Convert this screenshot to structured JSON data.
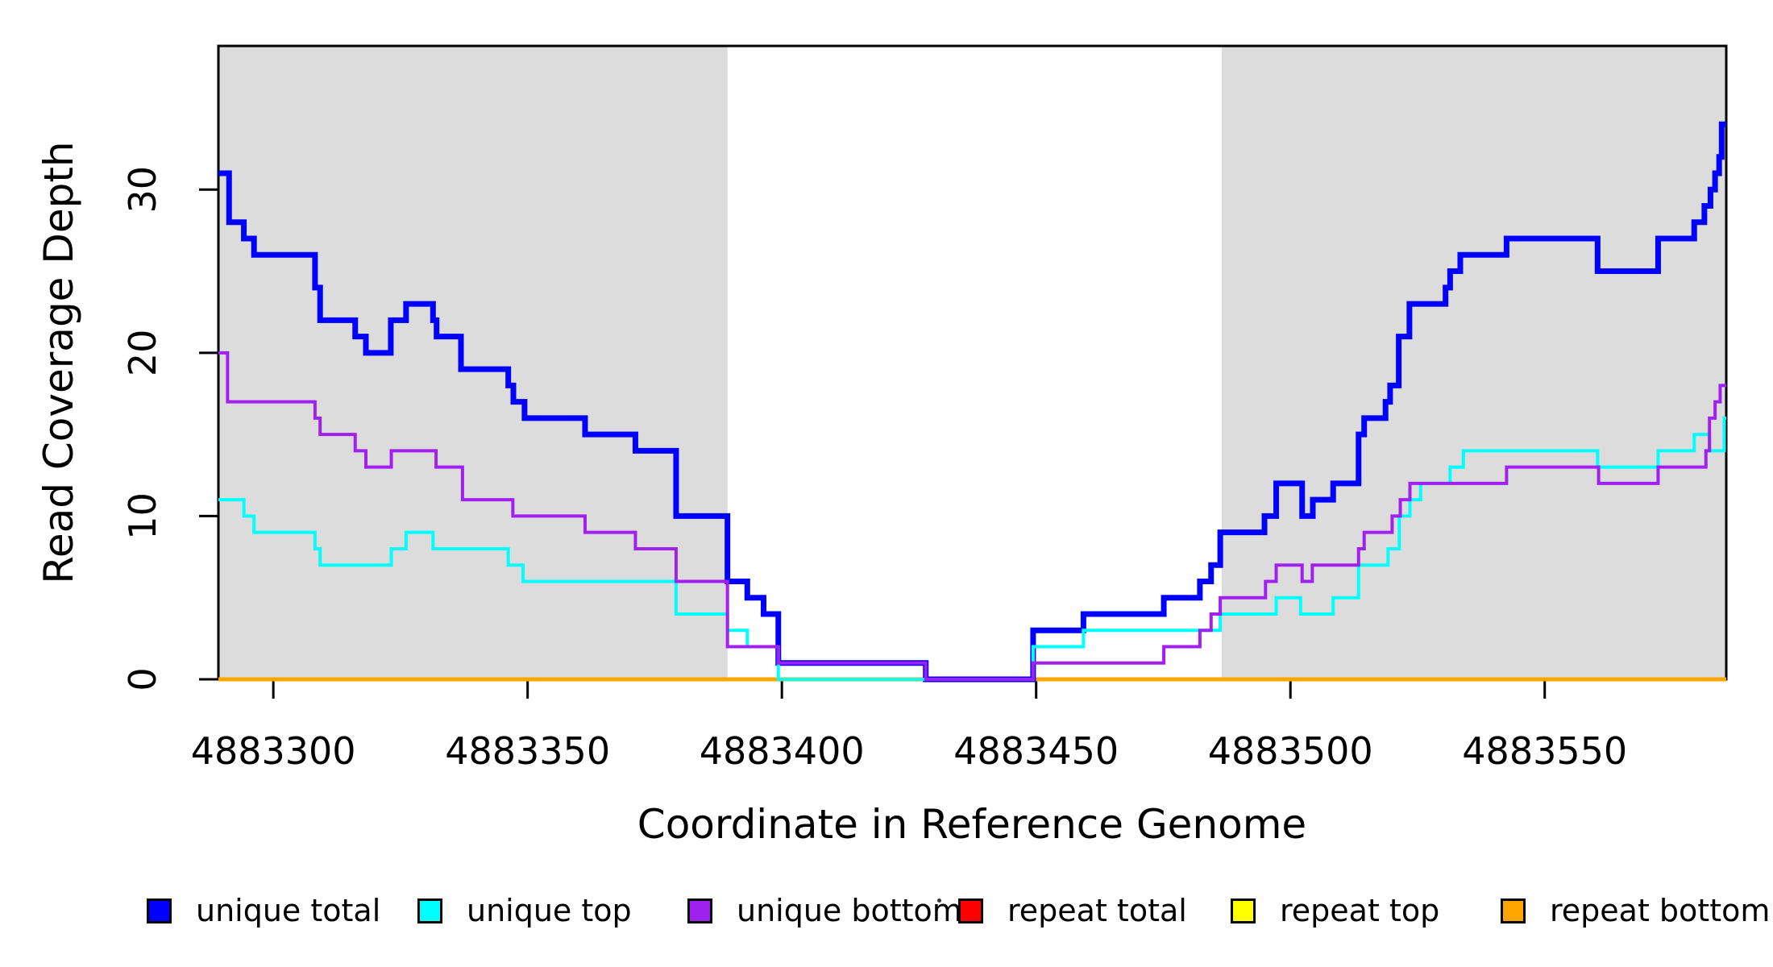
{
  "figure": {
    "xlabel": "Coordinate in Reference Genome",
    "ylabel": "Read Coverage Depth"
  },
  "chart_data": {
    "type": "line",
    "subtype": "step-coverage-plot",
    "title": "",
    "xlabel": "Coordinate in Reference Genome",
    "ylabel": "Read Coverage Depth",
    "xlim": [
      4883289.2,
      4883585.7
    ],
    "ylim": [
      0,
      38.8
    ],
    "x_ticks": [
      4883300,
      4883350,
      4883400,
      4883450,
      4883500,
      4883550
    ],
    "y_ticks": [
      0,
      10,
      20,
      30
    ],
    "grid": "off",
    "legend_position": "bottom",
    "background_color": "#ffffff",
    "shade_color": "#DCDCDC",
    "shaded_regions": [
      {
        "x0": 4883289.2,
        "x1": 4883389.3
      },
      {
        "x0": 4883486.5,
        "x1": 4883585.7
      }
    ],
    "series": [
      {
        "name": "unique total",
        "color": "#0000FF",
        "line_width": 7,
        "steps": [
          [
            4883289.2,
            31
          ],
          [
            4883291.3,
            28
          ],
          [
            4883294.2,
            27
          ],
          [
            4883296.2,
            26
          ],
          [
            4883308.2,
            24
          ],
          [
            4883309.2,
            22
          ],
          [
            4883316.1,
            21
          ],
          [
            4883318.2,
            20
          ],
          [
            4883323.1,
            22
          ],
          [
            4883326.1,
            23
          ],
          [
            4883331.4,
            22
          ],
          [
            4883332.1,
            21
          ],
          [
            4883336.9,
            19
          ],
          [
            4883346.2,
            18
          ],
          [
            4883347.2,
            17
          ],
          [
            4883349.4,
            16
          ],
          [
            4883361.3,
            15
          ],
          [
            4883371.2,
            14
          ],
          [
            4883379.2,
            10
          ],
          [
            4883389.3,
            6
          ],
          [
            4883393.2,
            5
          ],
          [
            4883396.4,
            4
          ],
          [
            4883399.3,
            1
          ],
          [
            4883428.3,
            0
          ],
          [
            4883449.4,
            3
          ],
          [
            4883459.3,
            4
          ],
          [
            4883475.1,
            5
          ],
          [
            4883482.2,
            6
          ],
          [
            4883484.4,
            7
          ],
          [
            4883486.2,
            9
          ],
          [
            4883494.9,
            10
          ],
          [
            4883497.2,
            12
          ],
          [
            4883502.3,
            10
          ],
          [
            4883504.4,
            11
          ],
          [
            4883508.4,
            12
          ],
          [
            4883513.4,
            15
          ],
          [
            4883514.5,
            16
          ],
          [
            4883518.7,
            17
          ],
          [
            4883519.6,
            18
          ],
          [
            4883521.3,
            21
          ],
          [
            4883523.4,
            23
          ],
          [
            4883530.5,
            24
          ],
          [
            4883531.4,
            25
          ],
          [
            4883533.4,
            26
          ],
          [
            4883542.5,
            27
          ],
          [
            4883560.4,
            25
          ],
          [
            4883572.3,
            27
          ],
          [
            4883579.4,
            28
          ],
          [
            4883581.4,
            29
          ],
          [
            4883582.6,
            30
          ],
          [
            4883583.5,
            31
          ],
          [
            4883584.3,
            32
          ],
          [
            4883584.8,
            34
          ],
          [
            4883585.7,
            34
          ]
        ]
      },
      {
        "name": "unique top",
        "color": "#00FFFF",
        "line_width": 4,
        "steps": [
          [
            4883289.2,
            11
          ],
          [
            4883294.2,
            10
          ],
          [
            4883296.2,
            9
          ],
          [
            4883308.2,
            8
          ],
          [
            4883309.2,
            7
          ],
          [
            4883323.2,
            8
          ],
          [
            4883326.1,
            9
          ],
          [
            4883331.4,
            8
          ],
          [
            4883346.2,
            7
          ],
          [
            4883349.1,
            6
          ],
          [
            4883379.2,
            4
          ],
          [
            4883389.3,
            3
          ],
          [
            4883393.2,
            2
          ],
          [
            4883399.3,
            0
          ],
          [
            4883449.4,
            2
          ],
          [
            4883459.3,
            3
          ],
          [
            4883486.2,
            4
          ],
          [
            4883497.2,
            5
          ],
          [
            4883502.0,
            4
          ],
          [
            4883508.4,
            5
          ],
          [
            4883513.4,
            7
          ],
          [
            4883519.2,
            8
          ],
          [
            4883521.4,
            10
          ],
          [
            4883523.5,
            11
          ],
          [
            4883525.6,
            12
          ],
          [
            4883531.4,
            13
          ],
          [
            4883534.0,
            14
          ],
          [
            4883560.4,
            13
          ],
          [
            4883572.3,
            14
          ],
          [
            4883579.4,
            15
          ],
          [
            4883582.4,
            14
          ],
          [
            4883585.3,
            16
          ],
          [
            4883585.7,
            16
          ]
        ]
      },
      {
        "name": "unique bottom",
        "color": "#A020F0",
        "line_width": 4,
        "steps": [
          [
            4883289.2,
            20
          ],
          [
            4883291.0,
            17
          ],
          [
            4883308.2,
            16
          ],
          [
            4883309.2,
            15
          ],
          [
            4883316.1,
            14
          ],
          [
            4883318.2,
            13
          ],
          [
            4883323.2,
            14
          ],
          [
            4883332.0,
            13
          ],
          [
            4883337.2,
            11
          ],
          [
            4883347.1,
            10
          ],
          [
            4883361.3,
            9
          ],
          [
            4883371.2,
            8
          ],
          [
            4883379.2,
            6
          ],
          [
            4883389.3,
            2
          ],
          [
            4883399.3,
            1
          ],
          [
            4883428.3,
            0
          ],
          [
            4883449.4,
            1
          ],
          [
            4883475.1,
            2
          ],
          [
            4883482.2,
            3
          ],
          [
            4883484.4,
            4
          ],
          [
            4883486.2,
            5
          ],
          [
            4883495.1,
            6
          ],
          [
            4883497.2,
            7
          ],
          [
            4883502.3,
            6
          ],
          [
            4883504.3,
            7
          ],
          [
            4883513.4,
            8
          ],
          [
            4883514.5,
            9
          ],
          [
            4883520.0,
            10
          ],
          [
            4883521.6,
            11
          ],
          [
            4883523.5,
            12
          ],
          [
            4883542.5,
            13
          ],
          [
            4883560.6,
            12
          ],
          [
            4883572.3,
            13
          ],
          [
            4883581.7,
            14
          ],
          [
            4883582.4,
            16
          ],
          [
            4883583.5,
            17
          ],
          [
            4883584.5,
            18
          ],
          [
            4883585.7,
            18
          ]
        ]
      },
      {
        "name": "repeat total",
        "color": "#FF0000",
        "line_width": 4,
        "steps": [
          [
            4883289.2,
            0
          ],
          [
            4883585.7,
            0
          ]
        ]
      },
      {
        "name": "repeat top",
        "color": "#FFFF00",
        "line_width": 4,
        "steps": [
          [
            4883289.2,
            0
          ],
          [
            4883585.7,
            0
          ]
        ]
      },
      {
        "name": "repeat bottom",
        "color": "#FFA500",
        "line_width": 5,
        "steps": [
          [
            4883289.2,
            0
          ],
          [
            4883585.7,
            0
          ]
        ]
      }
    ]
  }
}
